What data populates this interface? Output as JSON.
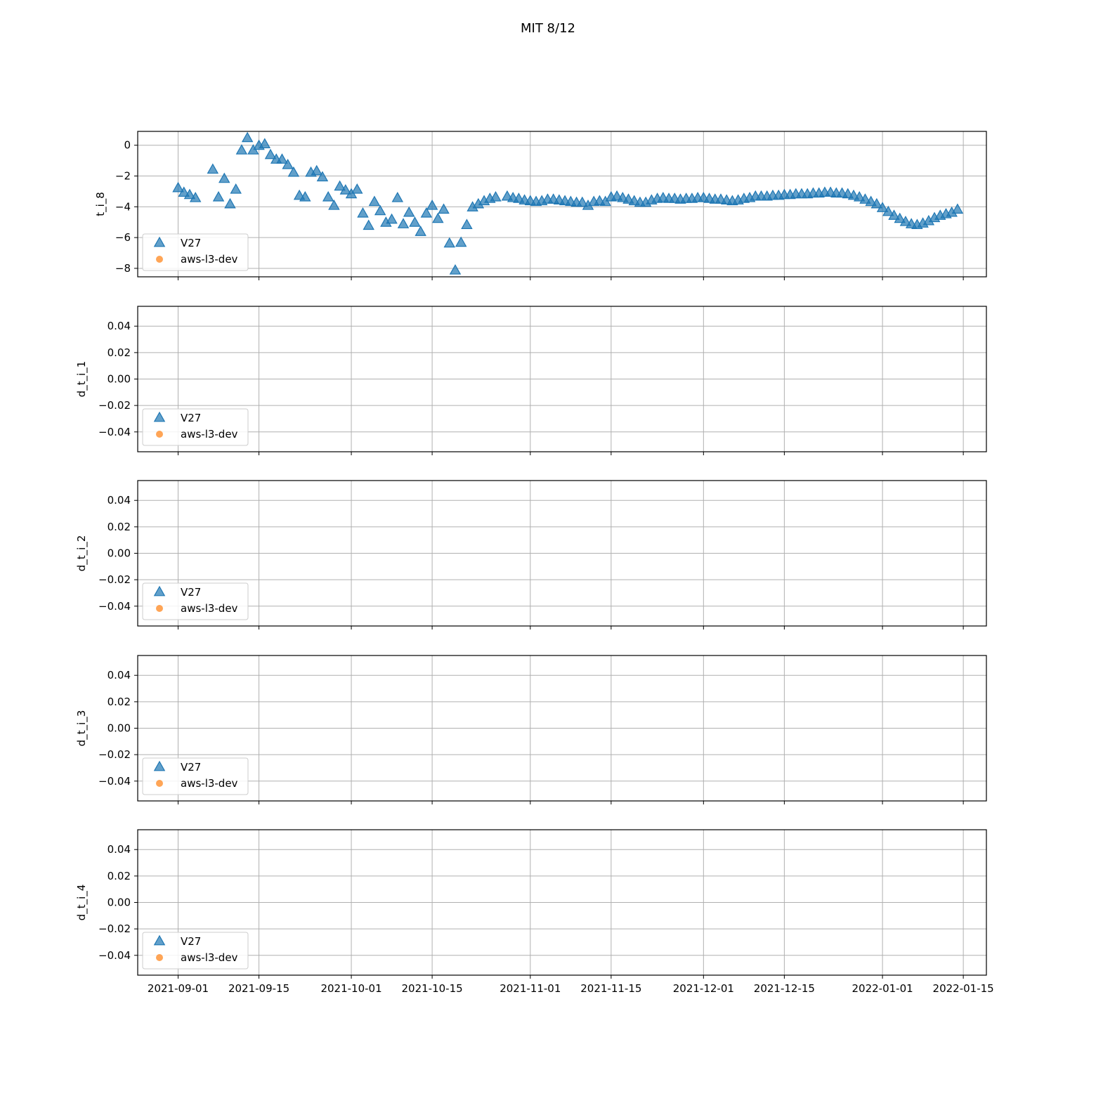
{
  "figure": {
    "title": "MIT 8/12"
  },
  "legend": [
    {
      "label": "V27",
      "marker": "triangle",
      "color": "#1f77b4"
    },
    {
      "label": "aws-l3-dev",
      "marker": "circle",
      "color": "#ff7f0e"
    }
  ],
  "x_axis": {
    "ticks": [
      "2021-09-01",
      "2021-09-15",
      "2021-10-01",
      "2021-10-15",
      "2021-11-01",
      "2021-11-15",
      "2021-12-01",
      "2021-12-15",
      "2022-01-01",
      "2022-01-15"
    ],
    "range": [
      "2021-08-25",
      "2022-01-19"
    ]
  },
  "chart_data": [
    {
      "type": "scatter",
      "ylabel": "t_i_8",
      "ylim": [
        -8.55,
        0.9
      ],
      "yticks": [
        0,
        -2,
        -4,
        -6,
        -8
      ],
      "ytick_labels": [
        "0",
        "−2",
        "−4",
        "−6",
        "−8"
      ],
      "grid": true,
      "legend_position": "lower-left",
      "series": [
        {
          "name": "V27",
          "color": "#1f77b4",
          "points": [
            [
              "2021-09-01",
              -2.8
            ],
            [
              "2021-09-02",
              -3.1
            ],
            [
              "2021-09-03",
              -3.25
            ],
            [
              "2021-09-04",
              -3.45
            ],
            [
              "2021-09-07",
              -1.6
            ],
            [
              "2021-09-08",
              -3.4
            ],
            [
              "2021-09-09",
              -2.2
            ],
            [
              "2021-09-10",
              -3.85
            ],
            [
              "2021-09-11",
              -2.9
            ],
            [
              "2021-09-12",
              -0.35
            ],
            [
              "2021-09-13",
              0.45
            ],
            [
              "2021-09-14",
              -0.35
            ],
            [
              "2021-09-15",
              -0.05
            ],
            [
              "2021-09-16",
              0.05
            ],
            [
              "2021-09-17",
              -0.65
            ],
            [
              "2021-09-18",
              -0.95
            ],
            [
              "2021-09-19",
              -0.95
            ],
            [
              "2021-09-20",
              -1.3
            ],
            [
              "2021-09-21",
              -1.8
            ],
            [
              "2021-09-22",
              -3.3
            ],
            [
              "2021-09-23",
              -3.4
            ],
            [
              "2021-09-24",
              -1.8
            ],
            [
              "2021-09-25",
              -1.7
            ],
            [
              "2021-09-26",
              -2.1
            ],
            [
              "2021-09-27",
              -3.4
            ],
            [
              "2021-09-28",
              -3.95
            ],
            [
              "2021-09-29",
              -2.7
            ],
            [
              "2021-09-30",
              -2.95
            ],
            [
              "2021-10-01",
              -3.2
            ],
            [
              "2021-10-02",
              -2.9
            ],
            [
              "2021-10-03",
              -4.45
            ],
            [
              "2021-10-04",
              -5.25
            ],
            [
              "2021-10-05",
              -3.7
            ],
            [
              "2021-10-06",
              -4.3
            ],
            [
              "2021-10-07",
              -5.05
            ],
            [
              "2021-10-08",
              -4.85
            ],
            [
              "2021-10-09",
              -3.45
            ],
            [
              "2021-10-10",
              -5.15
            ],
            [
              "2021-10-11",
              -4.4
            ],
            [
              "2021-10-12",
              -5.05
            ],
            [
              "2021-10-13",
              -5.65
            ],
            [
              "2021-10-14",
              -4.45
            ],
            [
              "2021-10-15",
              -3.95
            ],
            [
              "2021-10-16",
              -4.8
            ],
            [
              "2021-10-17",
              -4.2
            ],
            [
              "2021-10-18",
              -6.4
            ],
            [
              "2021-10-19",
              -8.15
            ],
            [
              "2021-10-20",
              -6.35
            ],
            [
              "2021-10-21",
              -5.2
            ],
            [
              "2021-10-22",
              -4.05
            ],
            [
              "2021-10-23",
              -3.85
            ],
            [
              "2021-10-24",
              -3.65
            ],
            [
              "2021-10-25",
              -3.5
            ],
            [
              "2021-10-26",
              -3.4
            ],
            [
              "2021-10-28",
              -3.35
            ],
            [
              "2021-10-29",
              -3.45
            ],
            [
              "2021-10-30",
              -3.5
            ],
            [
              "2021-10-31",
              -3.6
            ],
            [
              "2021-11-01",
              -3.65
            ],
            [
              "2021-11-02",
              -3.7
            ],
            [
              "2021-11-03",
              -3.65
            ],
            [
              "2021-11-04",
              -3.55
            ],
            [
              "2021-11-05",
              -3.55
            ],
            [
              "2021-11-06",
              -3.6
            ],
            [
              "2021-11-07",
              -3.65
            ],
            [
              "2021-11-08",
              -3.7
            ],
            [
              "2021-11-09",
              -3.75
            ],
            [
              "2021-11-10",
              -3.75
            ],
            [
              "2021-11-11",
              -3.95
            ],
            [
              "2021-11-12",
              -3.7
            ],
            [
              "2021-11-13",
              -3.65
            ],
            [
              "2021-11-14",
              -3.7
            ],
            [
              "2021-11-15",
              -3.4
            ],
            [
              "2021-11-16",
              -3.35
            ],
            [
              "2021-11-17",
              -3.45
            ],
            [
              "2021-11-18",
              -3.55
            ],
            [
              "2021-11-19",
              -3.65
            ],
            [
              "2021-11-20",
              -3.75
            ],
            [
              "2021-11-21",
              -3.75
            ],
            [
              "2021-11-22",
              -3.6
            ],
            [
              "2021-11-23",
              -3.5
            ],
            [
              "2021-11-24",
              -3.45
            ],
            [
              "2021-11-25",
              -3.5
            ],
            [
              "2021-11-26",
              -3.5
            ],
            [
              "2021-11-27",
              -3.55
            ],
            [
              "2021-11-28",
              -3.5
            ],
            [
              "2021-11-29",
              -3.5
            ],
            [
              "2021-11-30",
              -3.45
            ],
            [
              "2021-12-01",
              -3.45
            ],
            [
              "2021-12-02",
              -3.5
            ],
            [
              "2021-12-03",
              -3.55
            ],
            [
              "2021-12-04",
              -3.55
            ],
            [
              "2021-12-05",
              -3.6
            ],
            [
              "2021-12-06",
              -3.65
            ],
            [
              "2021-12-07",
              -3.6
            ],
            [
              "2021-12-08",
              -3.5
            ],
            [
              "2021-12-09",
              -3.45
            ],
            [
              "2021-12-10",
              -3.35
            ],
            [
              "2021-12-11",
              -3.35
            ],
            [
              "2021-12-12",
              -3.35
            ],
            [
              "2021-12-13",
              -3.3
            ],
            [
              "2021-12-14",
              -3.3
            ],
            [
              "2021-12-15",
              -3.25
            ],
            [
              "2021-12-16",
              -3.25
            ],
            [
              "2021-12-17",
              -3.2
            ],
            [
              "2021-12-18",
              -3.2
            ],
            [
              "2021-12-19",
              -3.2
            ],
            [
              "2021-12-20",
              -3.15
            ],
            [
              "2021-12-21",
              -3.15
            ],
            [
              "2021-12-22",
              -3.1
            ],
            [
              "2021-12-23",
              -3.1
            ],
            [
              "2021-12-24",
              -3.15
            ],
            [
              "2021-12-25",
              -3.15
            ],
            [
              "2021-12-26",
              -3.2
            ],
            [
              "2021-12-27",
              -3.3
            ],
            [
              "2021-12-28",
              -3.4
            ],
            [
              "2021-12-29",
              -3.55
            ],
            [
              "2021-12-30",
              -3.7
            ],
            [
              "2021-12-31",
              -3.85
            ],
            [
              "2022-01-01",
              -4.1
            ],
            [
              "2022-01-02",
              -4.35
            ],
            [
              "2022-01-03",
              -4.6
            ],
            [
              "2022-01-04",
              -4.8
            ],
            [
              "2022-01-05",
              -5.0
            ],
            [
              "2022-01-06",
              -5.15
            ],
            [
              "2022-01-07",
              -5.2
            ],
            [
              "2022-01-08",
              -5.1
            ],
            [
              "2022-01-09",
              -4.95
            ],
            [
              "2022-01-10",
              -4.75
            ],
            [
              "2022-01-11",
              -4.6
            ],
            [
              "2022-01-12",
              -4.5
            ],
            [
              "2022-01-13",
              -4.4
            ],
            [
              "2022-01-14",
              -4.2
            ]
          ]
        },
        {
          "name": "aws-l3-dev",
          "color": "#ff7f0e",
          "points": []
        }
      ]
    },
    {
      "type": "scatter",
      "ylabel": "d_t_i_1",
      "ylim": [
        -0.055,
        0.055
      ],
      "yticks": [
        0.04,
        0.02,
        0,
        -0.02,
        -0.04
      ],
      "ytick_labels": [
        "0.04",
        "0.02",
        "0.00",
        "−0.02",
        "−0.04"
      ],
      "grid": true,
      "legend_position": "lower-left",
      "series": [
        {
          "name": "V27",
          "color": "#1f77b4",
          "points": []
        },
        {
          "name": "aws-l3-dev",
          "color": "#ff7f0e",
          "points": []
        }
      ]
    },
    {
      "type": "scatter",
      "ylabel": "d_t_i_2",
      "ylim": [
        -0.055,
        0.055
      ],
      "yticks": [
        0.04,
        0.02,
        0,
        -0.02,
        -0.04
      ],
      "ytick_labels": [
        "0.04",
        "0.02",
        "0.00",
        "−0.02",
        "−0.04"
      ],
      "grid": true,
      "legend_position": "lower-left",
      "series": [
        {
          "name": "V27",
          "color": "#1f77b4",
          "points": []
        },
        {
          "name": "aws-l3-dev",
          "color": "#ff7f0e",
          "points": []
        }
      ]
    },
    {
      "type": "scatter",
      "ylabel": "d_t_i_3",
      "ylim": [
        -0.055,
        0.055
      ],
      "yticks": [
        0.04,
        0.02,
        0,
        -0.02,
        -0.04
      ],
      "ytick_labels": [
        "0.04",
        "0.02",
        "0.00",
        "−0.02",
        "−0.04"
      ],
      "grid": true,
      "legend_position": "lower-left",
      "series": [
        {
          "name": "V27",
          "color": "#1f77b4",
          "points": []
        },
        {
          "name": "aws-l3-dev",
          "color": "#ff7f0e",
          "points": []
        }
      ]
    },
    {
      "type": "scatter",
      "ylabel": "d_t_i_4",
      "ylim": [
        -0.055,
        0.055
      ],
      "yticks": [
        0.04,
        0.02,
        0,
        -0.02,
        -0.04
      ],
      "ytick_labels": [
        "0.04",
        "0.02",
        "0.00",
        "−0.02",
        "−0.04"
      ],
      "grid": true,
      "legend_position": "lower-left",
      "series": [
        {
          "name": "V27",
          "color": "#1f77b4",
          "points": []
        },
        {
          "name": "aws-l3-dev",
          "color": "#ff7f0e",
          "points": []
        }
      ]
    }
  ]
}
